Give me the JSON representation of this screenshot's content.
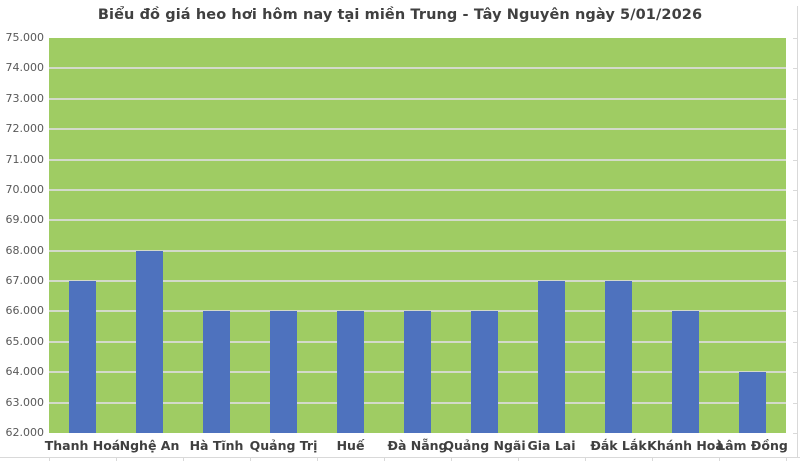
{
  "title": "Biểu đồ giá heo hơi hôm nay tại miền Trung - Tây Nguyên ngày 5/01/2026",
  "chart_data": {
    "type": "bar",
    "title": "Biểu đồ giá heo hơi hôm nay tại miền Trung - Tây Nguyên ngày 5/01/2026",
    "categories": [
      "Thanh Hoá",
      "Nghệ An",
      "Hà Tĩnh",
      "Quảng Trị",
      "Huế",
      "Đà Nẵng",
      "Quảng Ngãi",
      "Gia Lai",
      "Đắk Lắk",
      "Khánh Hoà",
      "Lâm Đồng"
    ],
    "values": [
      67000,
      68000,
      66000,
      66000,
      66000,
      66000,
      66000,
      67000,
      67000,
      66000,
      64000
    ],
    "xlabel": "",
    "ylabel": "",
    "ylim": [
      62000,
      75000
    ],
    "ytick_step": 1000,
    "ytick_labels_top_to_bottom": [
      "75.000",
      "74.000",
      "73.000",
      "72.000",
      "71.000",
      "70.000",
      "69.000",
      "68.000",
      "67.000",
      "66.000",
      "65.000",
      "64.000",
      "63.000",
      "62.000"
    ],
    "grid": true,
    "legend": false,
    "colors": {
      "bar": "#4E72BE",
      "plot_background": "#9FCC63",
      "gridline": "#DCDCDC",
      "title_text": "#404040",
      "ytick_text": "#595959",
      "xtick_text": "#404040",
      "axis_artifact": "#D9D9D9",
      "page_background": "#FFFFFF"
    }
  }
}
